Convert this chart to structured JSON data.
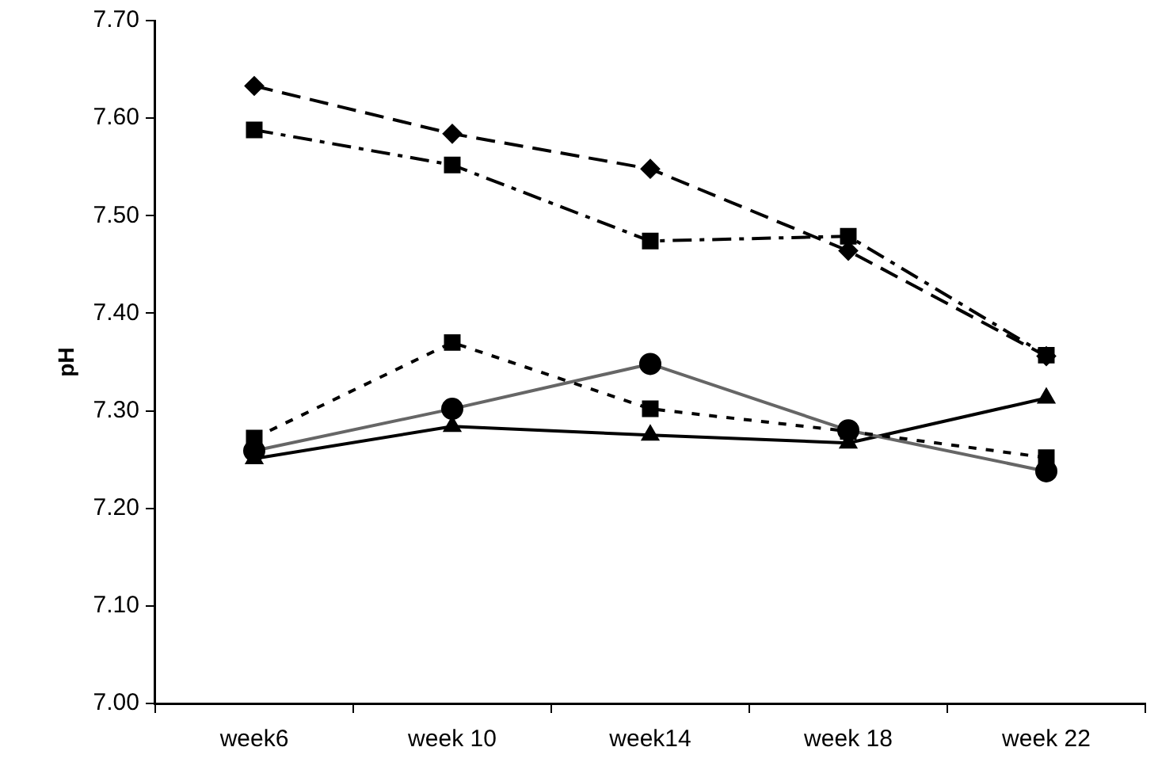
{
  "chart_data": {
    "type": "line",
    "ylabel": "pH",
    "categories": [
      "week6",
      "week 10",
      "week14",
      "week 18",
      "week 22"
    ],
    "series": [
      {
        "color": "#000000",
        "marker": "diamond",
        "line_style": "dashed",
        "values": [
          7.633,
          7.584,
          7.548,
          7.464,
          7.356
        ]
      },
      {
        "color": "#000000",
        "marker": "square",
        "line_style": "dashdot",
        "values": [
          7.588,
          7.552,
          7.474,
          7.479,
          7.357
        ]
      },
      {
        "color": "#000000",
        "marker": "square",
        "line_style": "dotted",
        "values": [
          7.272,
          7.37,
          7.302,
          7.279,
          7.252
        ]
      },
      {
        "color": "#666666",
        "marker": "circle",
        "line_style": "solid",
        "values": [
          7.259,
          7.302,
          7.348,
          7.28,
          7.238
        ]
      },
      {
        "color": "#000000",
        "marker": "triangle",
        "line_style": "solid",
        "values": [
          7.251,
          7.284,
          7.275,
          7.267,
          7.313
        ]
      }
    ],
    "ylim": [
      7.0,
      7.7
    ],
    "yticks": [
      {
        "value": 7.0,
        "label": "7.00"
      },
      {
        "value": 7.1,
        "label": "7.10"
      },
      {
        "value": 7.2,
        "label": "7.20"
      },
      {
        "value": 7.3,
        "label": "7.30"
      },
      {
        "value": 7.4,
        "label": "7.40"
      },
      {
        "value": 7.5,
        "label": "7.50"
      },
      {
        "value": 7.6,
        "label": "7.60"
      },
      {
        "value": 7.7,
        "label": "7.70"
      }
    ],
    "grid": false,
    "legend": false
  }
}
